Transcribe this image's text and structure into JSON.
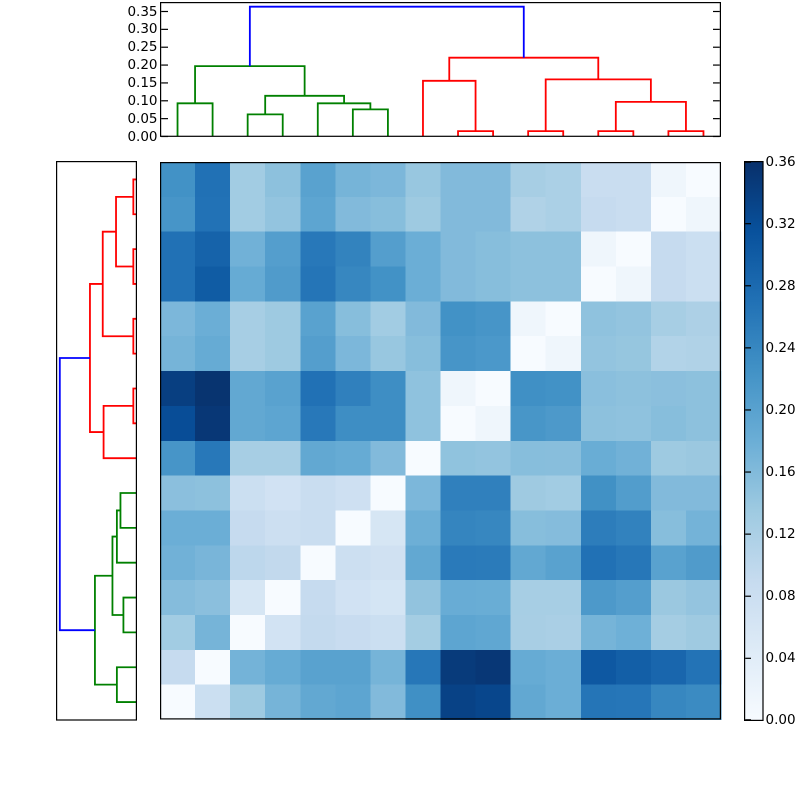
{
  "chart_data": {
    "type": "heatmap",
    "subtype": "clustered-distance-matrix-with-dendrograms",
    "title": "",
    "n": 16,
    "colormap": "Blues",
    "vmin": 0.0,
    "vmax": 0.36,
    "rows_are_reversed_column_order": true,
    "matrix": [
      [
        0.225,
        0.27,
        0.13,
        0.15,
        0.2,
        0.17,
        0.165,
        0.14,
        0.16,
        0.16,
        0.125,
        0.12,
        0.085,
        0.085,
        0.015,
        0.0
      ],
      [
        0.22,
        0.268,
        0.13,
        0.145,
        0.195,
        0.16,
        0.155,
        0.135,
        0.16,
        0.16,
        0.115,
        0.12,
        0.09,
        0.085,
        0.0,
        0.015
      ],
      [
        0.27,
        0.29,
        0.175,
        0.205,
        0.26,
        0.245,
        0.205,
        0.18,
        0.16,
        0.155,
        0.15,
        0.15,
        0.015,
        0.0,
        0.09,
        0.08
      ],
      [
        0.27,
        0.3,
        0.185,
        0.21,
        0.265,
        0.24,
        0.225,
        0.18,
        0.16,
        0.155,
        0.15,
        0.15,
        0.0,
        0.015,
        0.09,
        0.08
      ],
      [
        0.165,
        0.18,
        0.125,
        0.135,
        0.2,
        0.155,
        0.13,
        0.16,
        0.225,
        0.22,
        0.015,
        0.0,
        0.148,
        0.145,
        0.125,
        0.118
      ],
      [
        0.17,
        0.185,
        0.125,
        0.135,
        0.205,
        0.165,
        0.14,
        0.155,
        0.22,
        0.215,
        0.0,
        0.015,
        0.145,
        0.142,
        0.112,
        0.115
      ],
      [
        0.34,
        0.355,
        0.19,
        0.2,
        0.27,
        0.25,
        0.23,
        0.148,
        0.015,
        0.0,
        0.228,
        0.225,
        0.153,
        0.15,
        0.152,
        0.15
      ],
      [
        0.32,
        0.35,
        0.19,
        0.195,
        0.26,
        0.23,
        0.23,
        0.148,
        0.0,
        0.015,
        0.218,
        0.213,
        0.15,
        0.148,
        0.155,
        0.15
      ],
      [
        0.22,
        0.26,
        0.125,
        0.125,
        0.19,
        0.185,
        0.16,
        0.0,
        0.147,
        0.145,
        0.155,
        0.154,
        0.182,
        0.175,
        0.135,
        0.138
      ],
      [
        0.152,
        0.15,
        0.08,
        0.07,
        0.085,
        0.075,
        0.0,
        0.165,
        0.25,
        0.25,
        0.134,
        0.13,
        0.227,
        0.207,
        0.16,
        0.16
      ],
      [
        0.18,
        0.18,
        0.09,
        0.078,
        0.085,
        0.0,
        0.06,
        0.178,
        0.243,
        0.24,
        0.155,
        0.157,
        0.253,
        0.247,
        0.155,
        0.172
      ],
      [
        0.175,
        0.168,
        0.1,
        0.095,
        0.0,
        0.078,
        0.072,
        0.19,
        0.258,
        0.256,
        0.19,
        0.2,
        0.27,
        0.262,
        0.2,
        0.21
      ],
      [
        0.157,
        0.152,
        0.06,
        0.0,
        0.09,
        0.07,
        0.063,
        0.146,
        0.183,
        0.182,
        0.125,
        0.125,
        0.213,
        0.205,
        0.138,
        0.144
      ],
      [
        0.13,
        0.17,
        0.0,
        0.068,
        0.092,
        0.087,
        0.08,
        0.128,
        0.195,
        0.192,
        0.124,
        0.122,
        0.17,
        0.177,
        0.127,
        0.134
      ],
      [
        0.09,
        0.0,
        0.172,
        0.185,
        0.2,
        0.2,
        0.17,
        0.262,
        0.345,
        0.35,
        0.185,
        0.18,
        0.305,
        0.295,
        0.285,
        0.267
      ],
      [
        0.0,
        0.08,
        0.135,
        0.17,
        0.19,
        0.195,
        0.16,
        0.228,
        0.335,
        0.33,
        0.19,
        0.18,
        0.265,
        0.263,
        0.24,
        0.235
      ]
    ],
    "top_dendrogram": {
      "orientation": "top",
      "axis_tick_labels": [
        "0.00",
        "0.05",
        "0.10",
        "0.15",
        "0.20",
        "0.25",
        "0.30",
        "0.35"
      ],
      "axis_tick_values": [
        0.0,
        0.05,
        0.1,
        0.15,
        0.2,
        0.25,
        0.3,
        0.35
      ],
      "ylim": [
        0,
        0.375
      ]
    },
    "left_dendrogram": {
      "orientation": "left",
      "axis_tick_labels": [],
      "axis_tick_values": []
    },
    "dendrogram_colors": {
      "green": "#008000",
      "red": "#ff0000",
      "blue": "#0000ff"
    },
    "dendrogram_links": [
      {
        "id": "g1",
        "children": [
          "leaf-0",
          "leaf-1"
        ],
        "height": 0.093,
        "color_key": "green"
      },
      {
        "id": "g2",
        "children": [
          "leaf-2",
          "leaf-3"
        ],
        "height": 0.062,
        "color_key": "green"
      },
      {
        "id": "g3",
        "children": [
          "leaf-5",
          "leaf-6"
        ],
        "height": 0.076,
        "color_key": "green"
      },
      {
        "id": "g4",
        "children": [
          "leaf-4",
          "g3"
        ],
        "height": 0.093,
        "color_key": "green"
      },
      {
        "id": "g5",
        "children": [
          "g2",
          "g4"
        ],
        "height": 0.114,
        "color_key": "green"
      },
      {
        "id": "g6",
        "children": [
          "g1",
          "g5"
        ],
        "height": 0.197,
        "color_key": "green"
      },
      {
        "id": "r1",
        "children": [
          "leaf-8",
          "leaf-9"
        ],
        "height": 0.015,
        "color_key": "red"
      },
      {
        "id": "r2",
        "children": [
          "leaf-10",
          "leaf-11"
        ],
        "height": 0.015,
        "color_key": "red"
      },
      {
        "id": "r3",
        "children": [
          "leaf-12",
          "leaf-13"
        ],
        "height": 0.015,
        "color_key": "red"
      },
      {
        "id": "r4",
        "children": [
          "leaf-14",
          "leaf-15"
        ],
        "height": 0.015,
        "color_key": "red"
      },
      {
        "id": "r5",
        "children": [
          "leaf-7",
          "r1"
        ],
        "height": 0.156,
        "color_key": "red"
      },
      {
        "id": "r6",
        "children": [
          "r3",
          "r4"
        ],
        "height": 0.097,
        "color_key": "red"
      },
      {
        "id": "r7",
        "children": [
          "r2",
          "r6"
        ],
        "height": 0.16,
        "color_key": "red"
      },
      {
        "id": "r8",
        "children": [
          "r5",
          "r7"
        ],
        "height": 0.2206,
        "color_key": "red"
      },
      {
        "id": "b1",
        "children": [
          "g6",
          "r8"
        ],
        "height": 0.3635,
        "color_key": "blue"
      }
    ],
    "colorbar": {
      "tick_labels": [
        "0.00",
        "0.04",
        "0.08",
        "0.12",
        "0.16",
        "0.20",
        "0.24",
        "0.28",
        "0.32",
        "0.36"
      ],
      "tick_values": [
        0.0,
        0.04,
        0.08,
        0.12,
        0.16,
        0.2,
        0.24,
        0.28,
        0.32,
        0.36
      ],
      "colormap_stops": [
        [
          0.0,
          "#f7fbff"
        ],
        [
          0.125,
          "#deebf7"
        ],
        [
          0.25,
          "#c6dbef"
        ],
        [
          0.375,
          "#9ecae1"
        ],
        [
          0.5,
          "#6baed6"
        ],
        [
          0.625,
          "#4292c6"
        ],
        [
          0.75,
          "#2171b5"
        ],
        [
          0.875,
          "#08519c"
        ],
        [
          1.0,
          "#08306b"
        ]
      ]
    }
  }
}
